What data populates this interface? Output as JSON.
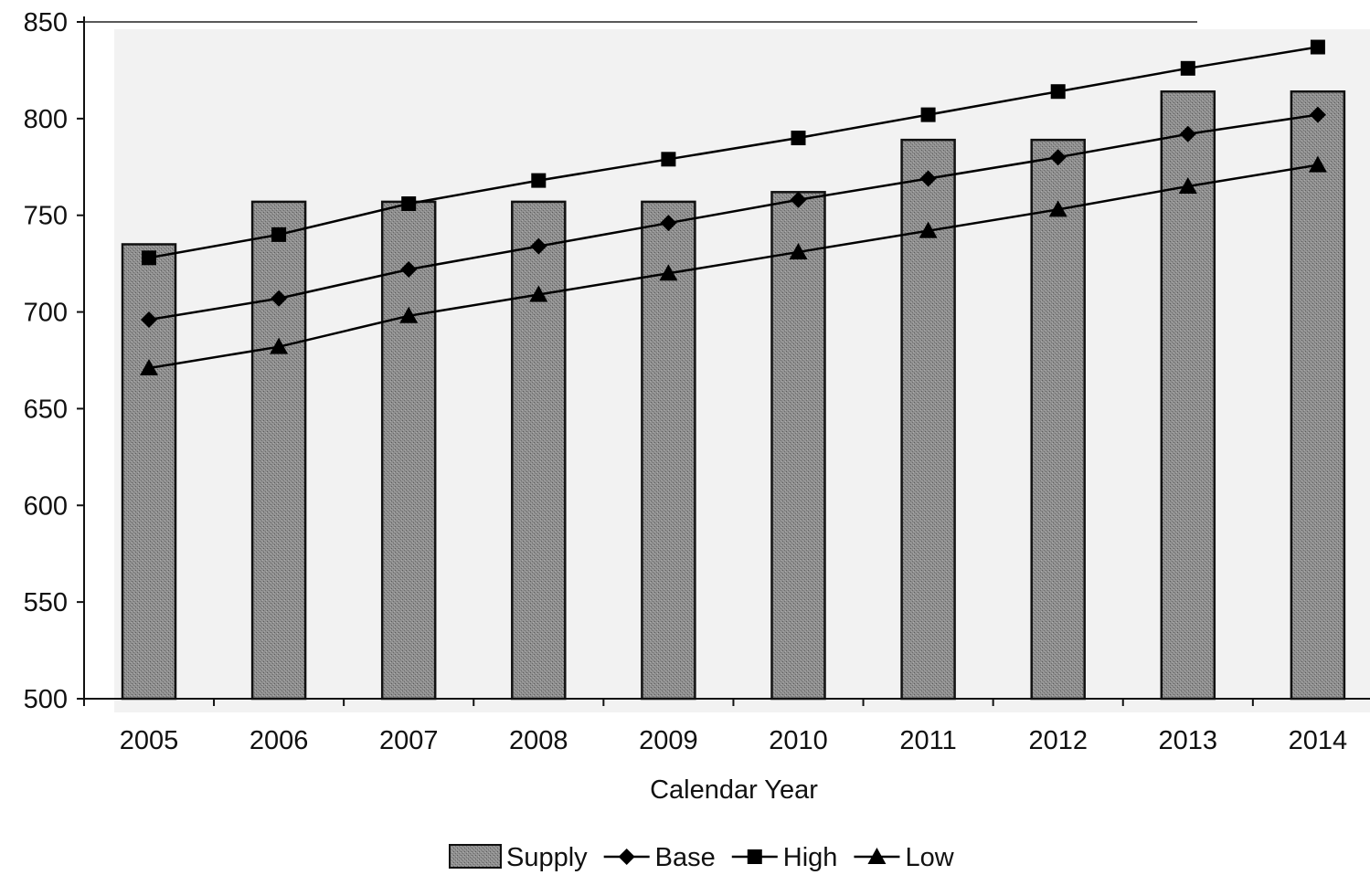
{
  "chart_data": {
    "type": "bar",
    "title": "",
    "xlabel": "Calendar Year",
    "ylabel": "",
    "ylim": [
      500,
      850
    ],
    "yticks": [
      "500",
      "550",
      "600",
      "650",
      "700",
      "750",
      "800",
      "850"
    ],
    "categories": [
      "2005",
      "2006",
      "2007",
      "2008",
      "2009",
      "2010",
      "2011",
      "2012",
      "2013",
      "2014"
    ],
    "grid": false,
    "legend_position": "bottom",
    "series": [
      {
        "name": "Supply",
        "kind": "bar",
        "values": [
          735,
          757,
          757,
          757,
          757,
          762,
          789,
          789,
          814,
          814
        ],
        "color": "#8c8c8c"
      },
      {
        "name": "Base",
        "kind": "line",
        "marker": "diamond",
        "values": [
          696,
          707,
          722,
          734,
          746,
          758,
          769,
          780,
          792,
          802
        ],
        "color": "#000000"
      },
      {
        "name": "High",
        "kind": "line",
        "marker": "square",
        "values": [
          728,
          740,
          756,
          768,
          779,
          790,
          802,
          814,
          826,
          837
        ],
        "color": "#000000"
      },
      {
        "name": "Low",
        "kind": "line",
        "marker": "triangle",
        "values": [
          671,
          682,
          698,
          709,
          720,
          731,
          742,
          753,
          765,
          776
        ],
        "color": "#000000"
      }
    ]
  }
}
